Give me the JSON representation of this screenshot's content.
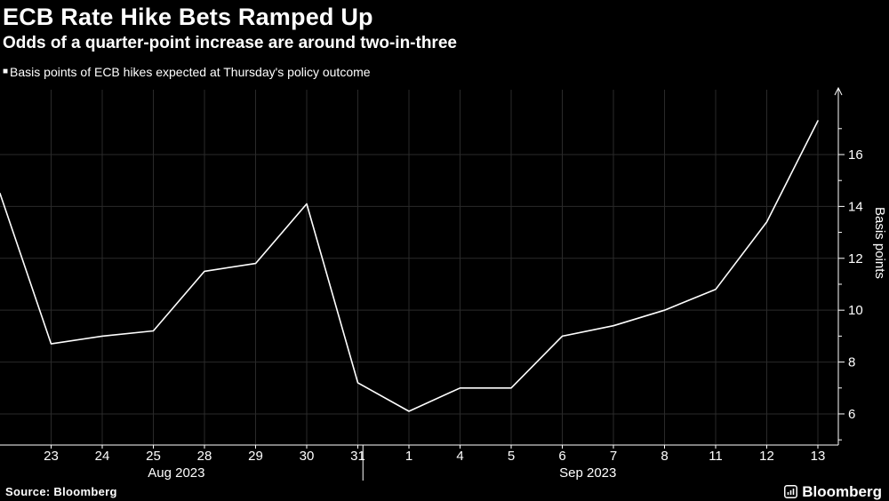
{
  "footer": {
    "source": "Source: Bloomberg",
    "brand": "Bloomberg"
  },
  "chart_data": {
    "type": "line",
    "title": "ECB Rate Hike Bets Ramped Up",
    "subtitle": "Odds of a quarter-point increase are around two-in-three",
    "legend_marker": "■",
    "legend": [
      "Basis points of ECB hikes expected at Thursday's policy outcome"
    ],
    "ylabel": "Basis points",
    "yaxis_side": "right",
    "ylim": [
      4.8,
      18.5
    ],
    "yticks_major": [
      6,
      8,
      10,
      12,
      14,
      16
    ],
    "yticks_minor": [
      5,
      7,
      9,
      11,
      13,
      15,
      17
    ],
    "x_max": 16.4,
    "categories": [
      "23",
      "24",
      "25",
      "28",
      "29",
      "30",
      "31",
      "1",
      "4",
      "5",
      "6",
      "7",
      "8",
      "11",
      "12",
      "13"
    ],
    "period_labels": [
      {
        "label": "Aug 2023",
        "center_x": 3.45
      },
      {
        "label": "Sep 2023",
        "center_x": 11.5
      }
    ],
    "period_separator_x": 7.1,
    "grid": true,
    "legend_position": "top-left",
    "series": [
      {
        "name": "Basis points of ECB hikes expected at Thursday's policy outcome",
        "x": [
          0,
          1,
          2,
          3,
          4,
          5,
          6,
          7,
          8,
          9,
          10,
          11,
          12,
          13,
          14,
          15,
          16
        ],
        "values": [
          14.5,
          8.7,
          9.0,
          9.2,
          11.5,
          11.8,
          14.1,
          7.2,
          6.1,
          7.0,
          7.0,
          9.0,
          9.4,
          10.0,
          10.8,
          13.4,
          17.3
        ]
      }
    ],
    "colors": {
      "line": "#ffffff",
      "grid": "#2a2a2a",
      "axis": "#ffffff",
      "text": "#ffffff",
      "background": "#000000"
    }
  }
}
